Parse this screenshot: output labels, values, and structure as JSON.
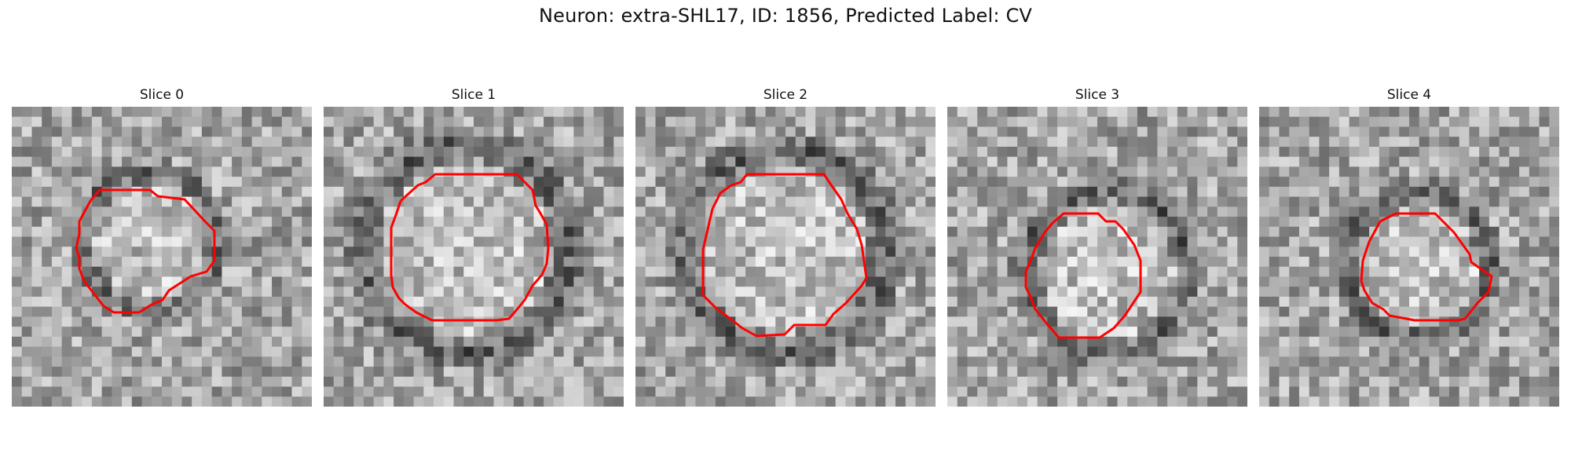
{
  "figure": {
    "title": "Neuron: extra-SHL17, ID: 1856, Predicted Label: CV",
    "contour_color": "#ff0000"
  },
  "panels": [
    {
      "label": "Slice 0"
    },
    {
      "label": "Slice 1"
    },
    {
      "label": "Slice 2"
    },
    {
      "label": "Slice 3"
    },
    {
      "label": "Slice 4"
    }
  ]
}
